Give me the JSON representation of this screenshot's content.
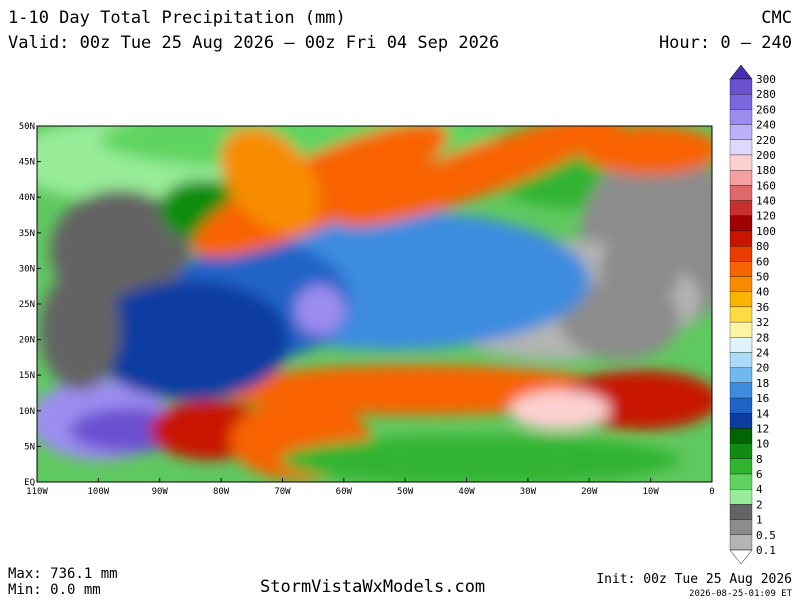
{
  "header": {
    "title": "1-10 Day Total Precipitation (mm)",
    "model": "CMC",
    "valid": "Valid: 00z Tue 25 Aug 2026 — 00z Fri 04 Sep 2026",
    "hour": "Hour: 0 — 240"
  },
  "map": {
    "lat_labels": [
      "50N",
      "45N",
      "40N",
      "35N",
      "30N",
      "25N",
      "20N",
      "15N",
      "10N",
      "5N",
      "EQ"
    ],
    "lon_labels": [
      "110W",
      "100W",
      "90W",
      "80W",
      "70W",
      "60W",
      "50W",
      "40W",
      "30W",
      "20W",
      "10W",
      "0"
    ]
  },
  "colorbar": {
    "over_color": "#4a2cb0",
    "levels": [
      {
        "label": "300",
        "color": "#6a4fd0"
      },
      {
        "label": "280",
        "color": "#7b68e0"
      },
      {
        "label": "260",
        "color": "#9c8cf0"
      },
      {
        "label": "240",
        "color": "#bcb0f8"
      },
      {
        "label": "220",
        "color": "#e0d8fc"
      },
      {
        "label": "200",
        "color": "#fcd0d0"
      },
      {
        "label": "180",
        "color": "#f4a0a0"
      },
      {
        "label": "160",
        "color": "#e06868"
      },
      {
        "label": "140",
        "color": "#c83030"
      },
      {
        "label": "120",
        "color": "#a00000"
      },
      {
        "label": "100",
        "color": "#c81400"
      },
      {
        "label": "80",
        "color": "#e83c00"
      },
      {
        "label": "60",
        "color": "#f86400"
      },
      {
        "label": "50",
        "color": "#f88c00"
      },
      {
        "label": "40",
        "color": "#f8b400"
      },
      {
        "label": "36",
        "color": "#fcdc40"
      },
      {
        "label": "32",
        "color": "#fcf4a0"
      },
      {
        "label": "28",
        "color": "#e0f4fc"
      },
      {
        "label": "24",
        "color": "#a8dcf8"
      },
      {
        "label": "20",
        "color": "#70b8f0"
      },
      {
        "label": "18",
        "color": "#3c8ce0"
      },
      {
        "label": "16",
        "color": "#2064c8"
      },
      {
        "label": "14",
        "color": "#0c3ca0"
      },
      {
        "label": "12",
        "color": "#006400"
      },
      {
        "label": "10",
        "color": "#108c10"
      },
      {
        "label": "8",
        "color": "#30b430"
      },
      {
        "label": "6",
        "color": "#60d460"
      },
      {
        "label": "4",
        "color": "#98ec98"
      },
      {
        "label": "2",
        "color": "#646464"
      },
      {
        "label": "1",
        "color": "#8c8c8c"
      },
      {
        "label": "0.5",
        "color": "#b4b4b4"
      },
      {
        "label": "0.1",
        "color": "#ffffff"
      }
    ]
  },
  "footer": {
    "max": "Max: 736.1 mm",
    "min": "Min: 0.0 mm",
    "site": "StormVistaWxModels.com",
    "init": "Init: 00z Tue 25 Aug 2026",
    "stamp": "2026-08-25-01:09 ET"
  }
}
